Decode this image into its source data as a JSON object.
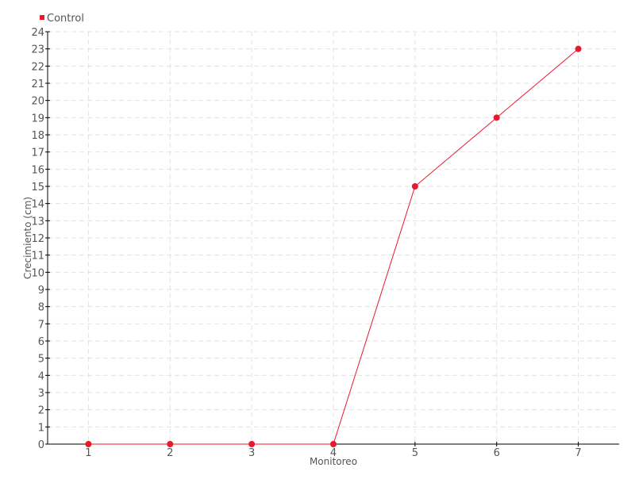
{
  "chart_data": {
    "type": "line",
    "title": "",
    "xlabel": "Monitoreo",
    "ylabel": "Crecimiento (cm)",
    "categories": [
      "1",
      "2",
      "3",
      "4",
      "5",
      "6",
      "7"
    ],
    "ylim": [
      0,
      24
    ],
    "ytick_step": 1,
    "grid": true,
    "legend_placement": "top-left",
    "series": [
      {
        "name": "Control",
        "color": "#e8192c",
        "values": [
          0,
          0,
          0,
          0,
          15,
          19,
          23
        ]
      }
    ]
  }
}
